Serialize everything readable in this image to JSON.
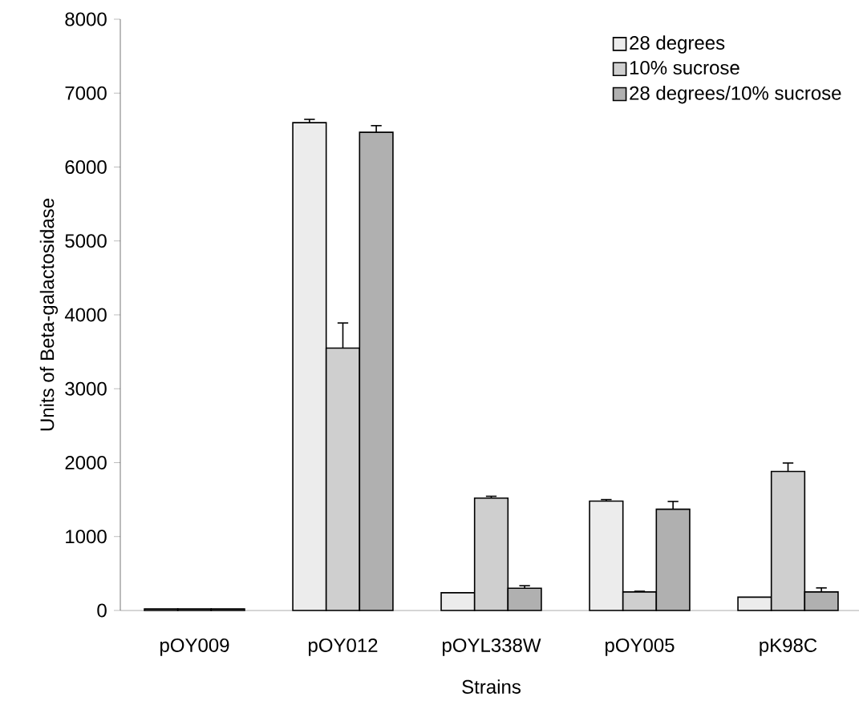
{
  "chart_data": {
    "type": "bar",
    "xlabel": "Strains",
    "ylabel": "Units of Beta-galactosidase",
    "categories": [
      "pOY009",
      "pOY012",
      "pOYL338W",
      "pOY005",
      "pK98C"
    ],
    "series": [
      {
        "name": "28 degrees",
        "color": "#ececec",
        "values": [
          20,
          6600,
          240,
          1480,
          180
        ],
        "errors": [
          null,
          45,
          null,
          20,
          null
        ]
      },
      {
        "name": "10% sucrose",
        "color": "#cfcfcf",
        "values": [
          20,
          3550,
          1520,
          250,
          1880
        ],
        "errors": [
          null,
          340,
          25,
          10,
          115
        ]
      },
      {
        "name": "28 degrees/10% sucrose",
        "color": "#b0b0b0",
        "values": [
          20,
          6470,
          300,
          1370,
          250
        ],
        "errors": [
          null,
          90,
          35,
          105,
          55
        ]
      }
    ],
    "ylim": [
      0,
      8000
    ],
    "yticks": [
      0,
      1000,
      2000,
      3000,
      4000,
      5000,
      6000,
      7000,
      8000
    ],
    "grid": false,
    "legend": "top right"
  }
}
